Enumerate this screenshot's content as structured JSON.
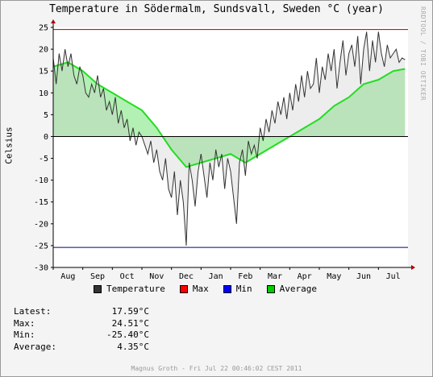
{
  "chart_data": {
    "type": "line",
    "title": "Temperature in Södermalm, Sundsvall, Sweden °C (year)",
    "ylabel": "Celsius",
    "xlabel": "",
    "ylim": [
      -30,
      25
    ],
    "yticks": [
      25,
      20,
      15,
      10,
      5,
      0,
      -5,
      -10,
      -15,
      -20,
      -25,
      -30
    ],
    "xticks": [
      "Aug",
      "Sep",
      "Oct",
      "Nov",
      "Dec",
      "Jan",
      "Feb",
      "Mar",
      "Apr",
      "May",
      "Jun",
      "Jul"
    ],
    "grid": false,
    "legend_position": "bottom",
    "max_line": 24.51,
    "min_line": -25.4,
    "series": [
      {
        "name": "Temperature",
        "color": "#333333",
        "x": [
          0,
          0.1,
          0.2,
          0.3,
          0.4,
          0.5,
          0.6,
          0.7,
          0.8,
          0.9,
          1.0,
          1.1,
          1.2,
          1.3,
          1.4,
          1.5,
          1.6,
          1.7,
          1.8,
          1.9,
          2.0,
          2.1,
          2.2,
          2.3,
          2.4,
          2.5,
          2.6,
          2.7,
          2.8,
          2.9,
          3.0,
          3.1,
          3.2,
          3.3,
          3.4,
          3.5,
          3.6,
          3.7,
          3.8,
          3.9,
          4.0,
          4.1,
          4.2,
          4.3,
          4.4,
          4.5,
          4.6,
          4.7,
          4.8,
          4.9,
          5.0,
          5.1,
          5.2,
          5.3,
          5.4,
          5.5,
          5.6,
          5.7,
          5.8,
          5.9,
          6.0,
          6.1,
          6.2,
          6.3,
          6.4,
          6.5,
          6.6,
          6.7,
          6.8,
          6.9,
          7.0,
          7.1,
          7.2,
          7.3,
          7.4,
          7.5,
          7.6,
          7.7,
          7.8,
          7.9,
          8.0,
          8.1,
          8.2,
          8.3,
          8.4,
          8.5,
          8.6,
          8.7,
          8.8,
          8.9,
          9.0,
          9.1,
          9.2,
          9.3,
          9.4,
          9.5,
          9.6,
          9.7,
          9.8,
          9.9,
          10.0,
          10.1,
          10.2,
          10.3,
          10.4,
          10.5,
          10.6,
          10.7,
          10.8,
          10.9,
          11.0,
          11.1,
          11.2,
          11.3,
          11.4,
          11.5,
          11.6,
          11.7,
          11.8,
          11.9
        ],
        "values": [
          18,
          12,
          19,
          15,
          20,
          16,
          19,
          14,
          12,
          16,
          14,
          10,
          9,
          12,
          10,
          14,
          9,
          11,
          6,
          8,
          5,
          9,
          3,
          6,
          2,
          4,
          -1,
          2,
          -2,
          1,
          0,
          -2,
          -4,
          -1,
          -6,
          -3,
          -8,
          -10,
          -5,
          -12,
          -14,
          -8,
          -18,
          -10,
          -15,
          -25,
          -6,
          -10,
          -16,
          -8,
          -4,
          -9,
          -14,
          -6,
          -10,
          -3,
          -7,
          -4,
          -12,
          -5,
          -8,
          -14,
          -20,
          -6,
          -3,
          -9,
          -1,
          -4,
          -2,
          -5,
          2,
          -1,
          4,
          1,
          6,
          3,
          8,
          5,
          9,
          4,
          10,
          6,
          12,
          8,
          14,
          9,
          15,
          11,
          12,
          18,
          10,
          16,
          13,
          19,
          15,
          20,
          11,
          17,
          22,
          14,
          19,
          21,
          16,
          23,
          12,
          20,
          24,
          15,
          22,
          17,
          24,
          19,
          16,
          21,
          18,
          19,
          20,
          17,
          18,
          17.59
        ]
      },
      {
        "name": "Average",
        "color": "#00cc00",
        "x": [
          0,
          0.5,
          1.0,
          1.5,
          2.0,
          2.5,
          3.0,
          3.5,
          4.0,
          4.5,
          5.0,
          5.5,
          6.0,
          6.5,
          7.0,
          7.5,
          8.0,
          8.5,
          9.0,
          9.5,
          10.0,
          10.5,
          11.0,
          11.5,
          11.9
        ],
        "values": [
          16,
          17,
          15,
          12,
          10,
          8,
          6,
          2,
          -3,
          -7,
          -6,
          -5,
          -4,
          -6,
          -4,
          -2,
          0,
          2,
          4,
          7,
          9,
          12,
          13,
          15,
          15.5
        ]
      }
    ]
  },
  "legend": {
    "temperature": {
      "label": "Temperature",
      "color": "#333333"
    },
    "max": {
      "label": "Max",
      "color": "#ff0000"
    },
    "min": {
      "label": "Min",
      "color": "#0000ff"
    },
    "average": {
      "label": "Average",
      "color": "#00cc00"
    }
  },
  "stats": {
    "latest": {
      "label": "Latest:",
      "value": "17.59°C"
    },
    "max": {
      "label": "Max:",
      "value": "24.51°C"
    },
    "min": {
      "label": "Min:",
      "value": "-25.40°C"
    },
    "average": {
      "label": "Average:",
      "value": "4.35°C"
    }
  },
  "side_text": "RRDTOOL / TOBI OETIKER",
  "footer": "Magnus Groth - Fri Jul 22 00:46:02 CEST 2011"
}
